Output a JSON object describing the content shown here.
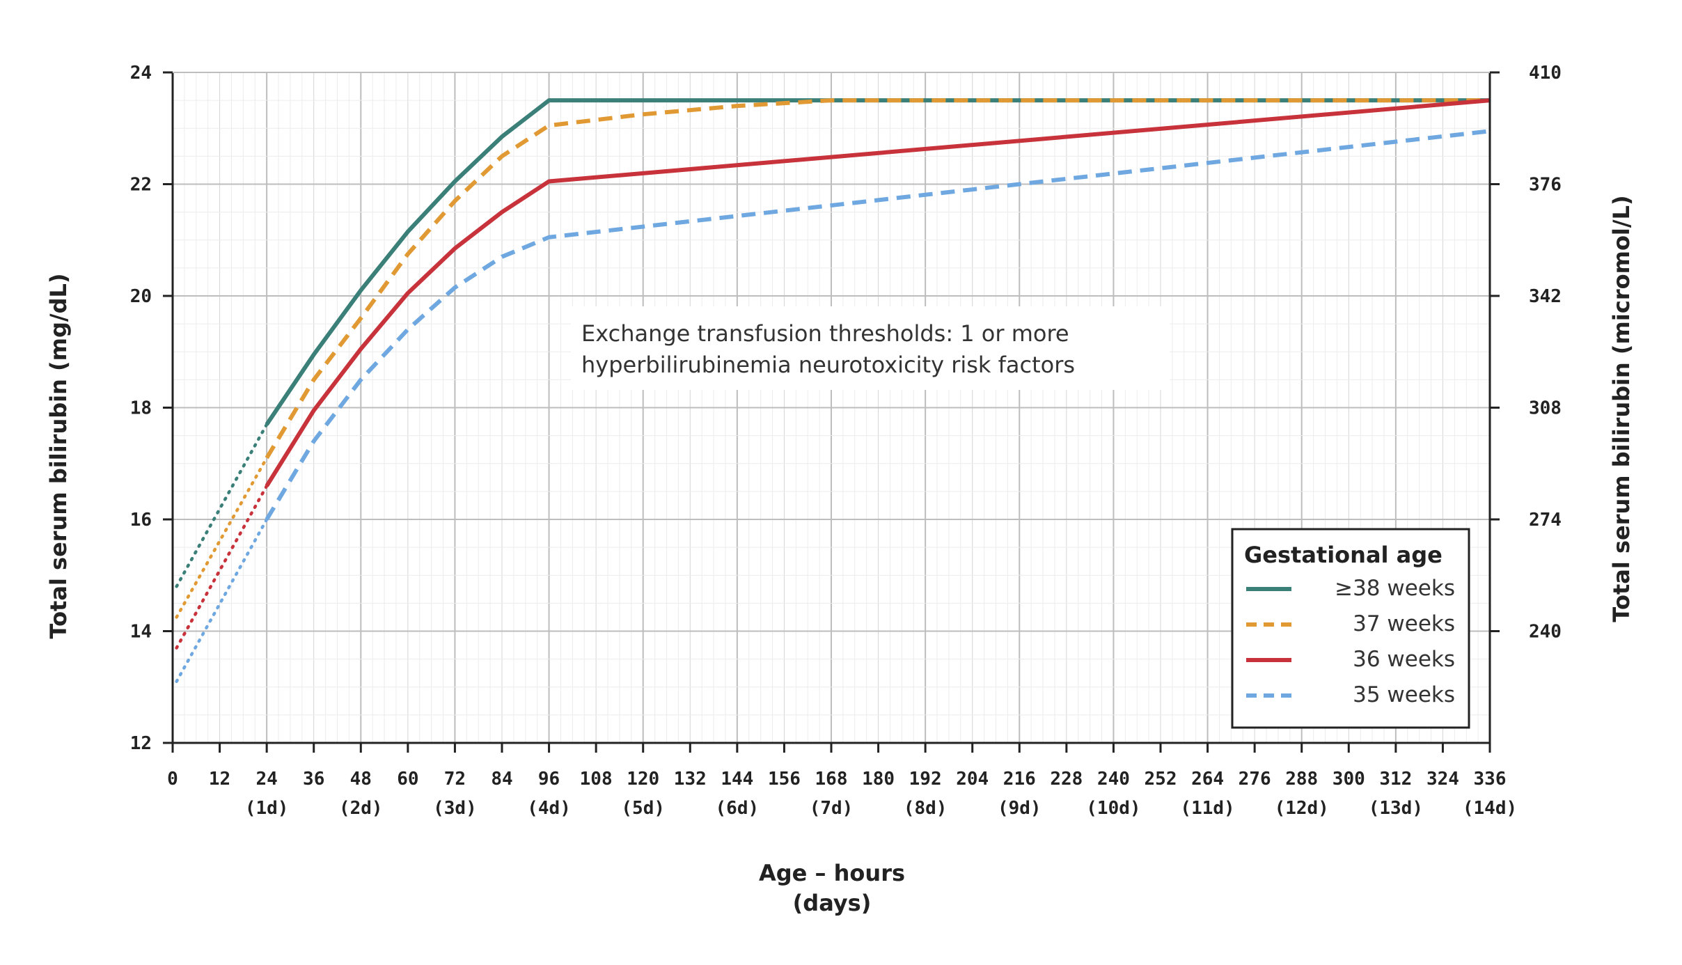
{
  "chart_data": {
    "type": "line",
    "annotation_lines": [
      "Exchange transfusion thresholds: 1 or more",
      "hyperbilirubinemia neurotoxicity risk factors"
    ],
    "xlabel_lines": [
      "Age – hours",
      "(days)"
    ],
    "ylabel_left": "Total serum bilirubin (mg/dL)",
    "ylabel_right": "Total serum bilirubin (micromol/L)",
    "xlim": [
      0,
      336
    ],
    "ylim": [
      12,
      24
    ],
    "x_ticks": [
      0,
      12,
      24,
      36,
      48,
      60,
      72,
      84,
      96,
      108,
      120,
      132,
      144,
      156,
      168,
      180,
      192,
      204,
      216,
      228,
      240,
      252,
      264,
      276,
      288,
      300,
      312,
      324,
      336
    ],
    "x_tick_labels": [
      "0",
      "12",
      "24",
      "36",
      "48",
      "60",
      "72",
      "84",
      "96",
      "108",
      "120",
      "132",
      "144",
      "156",
      "168",
      "180",
      "192",
      "204",
      "216",
      "228",
      "240",
      "252",
      "264",
      "276",
      "288",
      "300",
      "312",
      "324",
      "336"
    ],
    "x_day_ticks": [
      24,
      48,
      72,
      96,
      120,
      144,
      168,
      192,
      216,
      240,
      264,
      288,
      312,
      336
    ],
    "x_day_labels": [
      "(1d)",
      "(2d)",
      "(3d)",
      "(4d)",
      "(5d)",
      "(6d)",
      "(7d)",
      "(8d)",
      "(9d)",
      "(10d)",
      "(11d)",
      "(12d)",
      "(13d)",
      "(14d)"
    ],
    "y_ticks": [
      12,
      14,
      16,
      18,
      20,
      22,
      24
    ],
    "y_tick_labels": [
      "12",
      "14",
      "16",
      "18",
      "20",
      "22",
      "24"
    ],
    "y2_ticks": [
      24,
      22,
      20,
      18,
      16,
      14
    ],
    "y2_tick_labels": [
      "410",
      "376",
      "342",
      "308",
      "274",
      "240"
    ],
    "legend": {
      "title": "Gestational age",
      "position": "bottom-right"
    },
    "grid": true,
    "series": [
      {
        "name": "≥38 weeks",
        "color": "#3a7f78",
        "style": "solid",
        "extrapolated": {
          "x": [
            1,
            24
          ],
          "y": [
            14.8,
            17.7
          ]
        },
        "x": [
          24,
          36,
          48,
          60,
          72,
          84,
          96,
          336
        ],
        "y": [
          17.7,
          18.95,
          20.1,
          21.15,
          22.05,
          22.85,
          23.5,
          23.5
        ]
      },
      {
        "name": "37 weeks",
        "color": "#e19a33",
        "style": "dashed",
        "extrapolated": {
          "x": [
            1,
            24
          ],
          "y": [
            14.25,
            17.1
          ]
        },
        "x": [
          24,
          36,
          48,
          60,
          72,
          84,
          96,
          120,
          144,
          168,
          336
        ],
        "y": [
          17.1,
          18.5,
          19.6,
          20.75,
          21.7,
          22.5,
          23.05,
          23.25,
          23.4,
          23.5,
          23.5
        ]
      },
      {
        "name": "36 weeks",
        "color": "#c8323a",
        "style": "solid",
        "extrapolated": {
          "x": [
            1,
            24
          ],
          "y": [
            13.7,
            16.6
          ]
        },
        "x": [
          24,
          36,
          48,
          60,
          72,
          84,
          96,
          336
        ],
        "y": [
          16.6,
          17.95,
          19.05,
          20.05,
          20.85,
          21.5,
          22.05,
          23.5
        ]
      },
      {
        "name": "35 weeks",
        "color": "#6fa8e0",
        "style": "dashed",
        "extrapolated": {
          "x": [
            1,
            24
          ],
          "y": [
            13.1,
            16.0
          ]
        },
        "x": [
          24,
          36,
          48,
          60,
          72,
          84,
          96,
          336
        ],
        "y": [
          16.0,
          17.4,
          18.5,
          19.4,
          20.15,
          20.7,
          21.05,
          22.95
        ]
      }
    ]
  }
}
